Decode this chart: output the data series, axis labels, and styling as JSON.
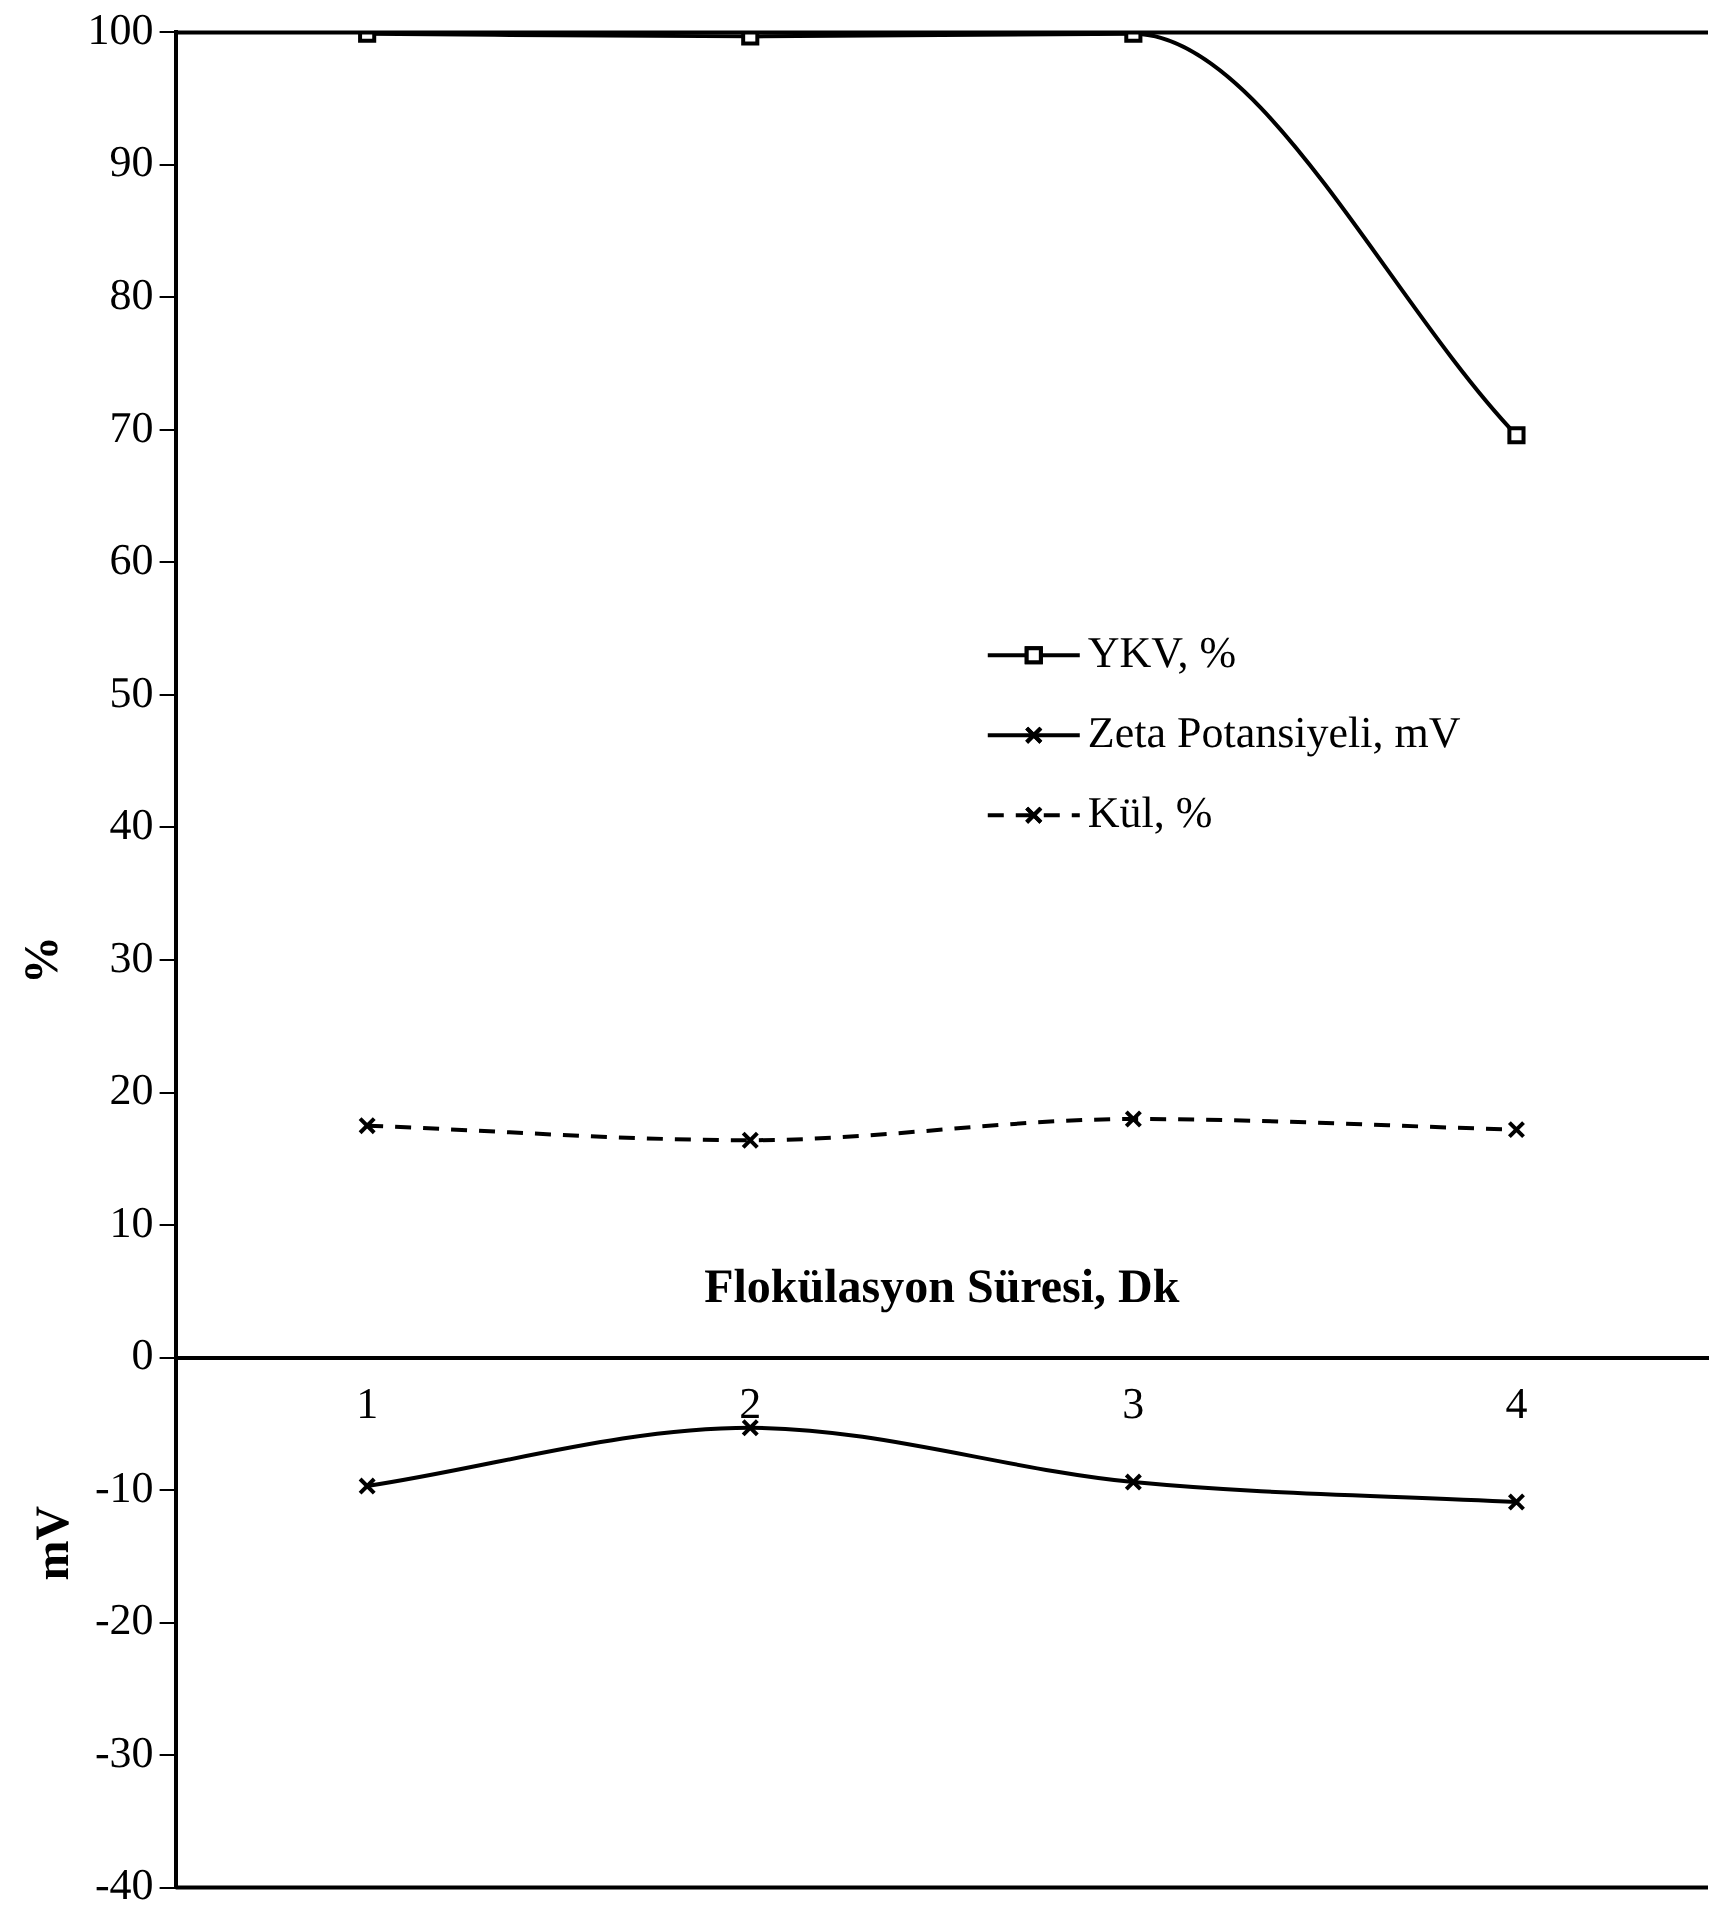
{
  "chart_data": {
    "type": "line",
    "xlabel": "Flokülasyon Süresi, Dk",
    "ylabel": "%",
    "annotations": [
      "mV"
    ],
    "categories": [
      "1",
      "2",
      "3",
      "4"
    ],
    "series": [
      {
        "name": "YKV, %",
        "color": "#000000",
        "marker": "square",
        "line_style": "solid",
        "values": [
          99.9,
          99.7,
          99.9,
          69.6
        ]
      },
      {
        "name": "Zeta Potansiyeli, mV",
        "color": "#000000",
        "marker": "cross",
        "line_style": "solid",
        "values": [
          -9.7,
          -5.3,
          -9.4,
          -10.9
        ]
      },
      {
        "name": "Kül, %",
        "color": "#000000",
        "marker": "cross",
        "line_style": "dashed",
        "values": [
          17.5,
          16.4,
          18.0,
          17.2
        ]
      }
    ],
    "ylim": [
      -40,
      100
    ],
    "yticks": [
      -40,
      -30,
      -20,
      -10,
      0,
      10,
      20,
      30,
      40,
      50,
      60,
      70,
      80,
      90,
      100
    ],
    "grid": false,
    "legend": "right"
  }
}
